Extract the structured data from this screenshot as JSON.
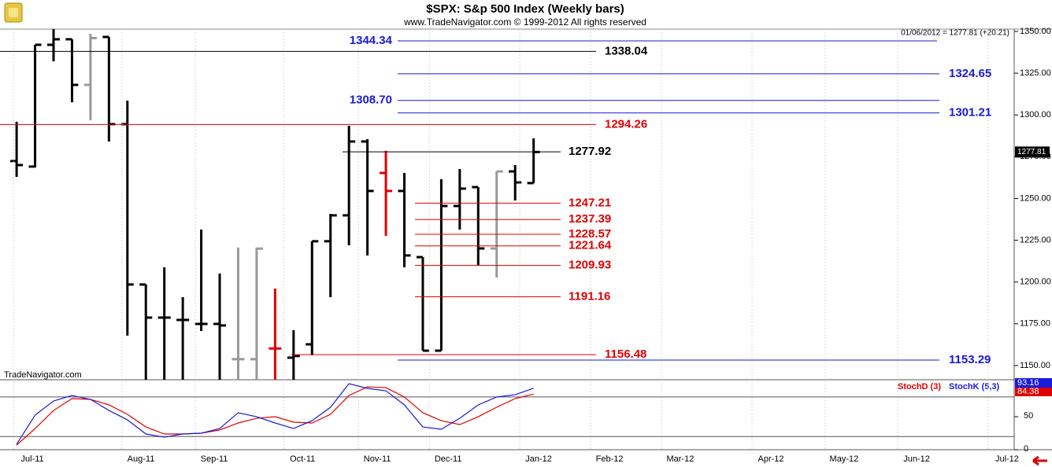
{
  "chart_data": [
    {
      "type": "ohlc",
      "title": "$SPX:  S&p 500 Index  (Weekly bars)",
      "subtitle": "www.TradeNavigator.com © 1999-2012 All rights reserved",
      "annotation": "01/06/2012 = 1277.81 (+20.21)",
      "watermark": "TradeNavigator.com",
      "open": [
        1272.4,
        1269.1,
        1342,
        1345.3,
        1318,
        1346.7,
        1294.5,
        1198.5,
        1178.7,
        1177.3,
        1174.9,
        1174.9,
        1153.8,
        1153.8,
        1160.2,
        1154.7,
        1162.7,
        1224.4,
        1239.9,
        1284.1,
        1265.3,
        1254.5,
        1214.9,
        1158.9,
        1245.5,
        1256.8,
        1220.1,
        1266.2,
        1259.2
      ],
      "high": [
        1295.9,
        1342,
        1352,
        1345.3,
        1348.6,
        1346.7,
        1308.6,
        1198.5,
        1208.8,
        1190.9,
        1231.4,
        1205.1,
        1220.6,
        1220.6,
        1196.1,
        1171.2,
        1224.4,
        1240.8,
        1293.5,
        1285.5,
        1278.5,
        1265.3,
        1214.9,
        1261.5,
        1267.6,
        1256.8,
        1266.2,
        1270,
        1286
      ],
      "low": [
        1262.9,
        1268.6,
        1332.1,
        1307.6,
        1296.8,
        1284.1,
        1167.9,
        1141.5,
        1141.5,
        1141.5,
        1170.7,
        1141.5,
        1141.5,
        1141.5,
        1141.5,
        1141.5,
        1156.1,
        1190.9,
        1222,
        1215.9,
        1227.6,
        1208.8,
        1158.9,
        1158.9,
        1231.4,
        1209.8,
        1202.7,
        1248.8,
        1259.2
      ],
      "close": [
        1270.0,
        1342,
        1345.3,
        1318,
        1346,
        1294.5,
        1198.5,
        1178.7,
        1178.7,
        1177.3,
        1174.9,
        1174.0,
        1153.8,
        1220.0,
        1160.2,
        1155.7,
        1224.4,
        1239.9,
        1284.1,
        1254.5,
        1254.5,
        1215.9,
        1158.9,
        1245.5,
        1255.9,
        1220.1,
        1266.2,
        1259.6,
        1277.81
      ],
      "bar_colors": [
        "#000",
        "#000",
        "#000",
        "#000",
        "#999",
        "#000",
        "#000",
        "#000",
        "#000",
        "#000",
        "#000",
        "#000",
        "#999",
        "#999",
        "#e00000",
        "#000",
        "#000",
        "#000",
        "#000",
        "#000",
        "#e00000",
        "#000",
        "#000",
        "#000",
        "#000",
        "#000",
        "#999",
        "#000",
        "#000"
      ],
      "levels": {
        "values": [
          1344.34,
          1338.04,
          1324.65,
          1308.7,
          1301.21,
          1294.26,
          1277.92,
          1247.21,
          1237.39,
          1228.57,
          1221.64,
          1209.93,
          1191.16,
          1156.48,
          1153.29
        ],
        "value_labels": [
          "1344.34",
          "1338.04",
          "1324.65",
          "1308.70",
          "1301.21",
          "1294.26",
          "1277.92",
          "1247.21",
          "1237.39",
          "1228.57",
          "1221.64",
          "1209.93",
          "1191.16",
          "1156.48",
          "1153.29"
        ],
        "colors": [
          "#1a1ad8",
          "#000",
          "#1a1ad8",
          "#1a1ad8",
          "#1a1ad8",
          "#e00000",
          "#000",
          "#e00000",
          "#e00000",
          "#e00000",
          "#e00000",
          "#e00000",
          "#e00000",
          "#e00000",
          "#1a1ad8"
        ]
      },
      "xlim": [
        -0.9,
        54.03
      ],
      "xticks": [
        {
          "value": -0.17,
          "label": "Jul-11"
        },
        {
          "value": 5.71,
          "label": "Aug-11"
        },
        {
          "value": 9.68,
          "label": "Sep-11"
        },
        {
          "value": 14.46,
          "label": "Oct-11"
        },
        {
          "value": 18.51,
          "label": "Nov-11"
        },
        {
          "value": 22.35,
          "label": "Dec-11"
        },
        {
          "value": 27.25,
          "label": "Jan-12"
        },
        {
          "value": 31.09,
          "label": "Feb-12"
        },
        {
          "value": 34.92,
          "label": "Mar-12"
        },
        {
          "value": 39.83,
          "label": "Apr-12"
        },
        {
          "value": 43.79,
          "label": "May-12"
        },
        {
          "value": 47.72,
          "label": "Jun-12"
        },
        {
          "value": 52.62,
          "label": "Jul-12"
        }
      ],
      "ylim": [
        1141.5,
        1351.4
      ],
      "yticks": [
        {
          "value": 1350,
          "label": "1350.00"
        },
        {
          "value": 1325,
          "label": "1325.00"
        },
        {
          "value": 1300,
          "label": "1300.00"
        },
        {
          "value": 1275,
          "label": "1275.00"
        },
        {
          "value": 1250,
          "label": "1250.00"
        },
        {
          "value": 1225,
          "label": "1225.00"
        },
        {
          "value": 1200,
          "label": "1200.00"
        },
        {
          "value": 1175,
          "label": "1175.00"
        },
        {
          "value": 1150,
          "label": "1150.00"
        }
      ]
    },
    {
      "type": "line",
      "series": [
        {
          "name": "StochD (3)",
          "color": "#e00000",
          "values": [
            7,
            32,
            59.5,
            77.4,
            76.2,
            67.9,
            53.6,
            34.5,
            23.8,
            23.8,
            25,
            29.8,
            40.5,
            47.6,
            50,
            41.7,
            40.5,
            53.6,
            82.1,
            95.2,
            94,
            79.8,
            56,
            44,
            38.1,
            50,
            64.3,
            77.4,
            84.38
          ]
        },
        {
          "name": "StochK (5,3)",
          "color": "#1a1ad8",
          "values": [
            8.3,
            52.4,
            73.8,
            82.1,
            76.2,
            59.5,
            45.2,
            23.8,
            19,
            23.8,
            25,
            32.1,
            56,
            50,
            40.5,
            32.1,
            44,
            64.3,
            100,
            92.9,
            89.3,
            67.9,
            34.5,
            31,
            47.6,
            67.9,
            79.8,
            83.3,
            93.16
          ]
        }
      ],
      "ylim": [
        0,
        106
      ],
      "yticks": [
        0,
        50
      ],
      "ref_lines": [
        20,
        80
      ]
    }
  ]
}
